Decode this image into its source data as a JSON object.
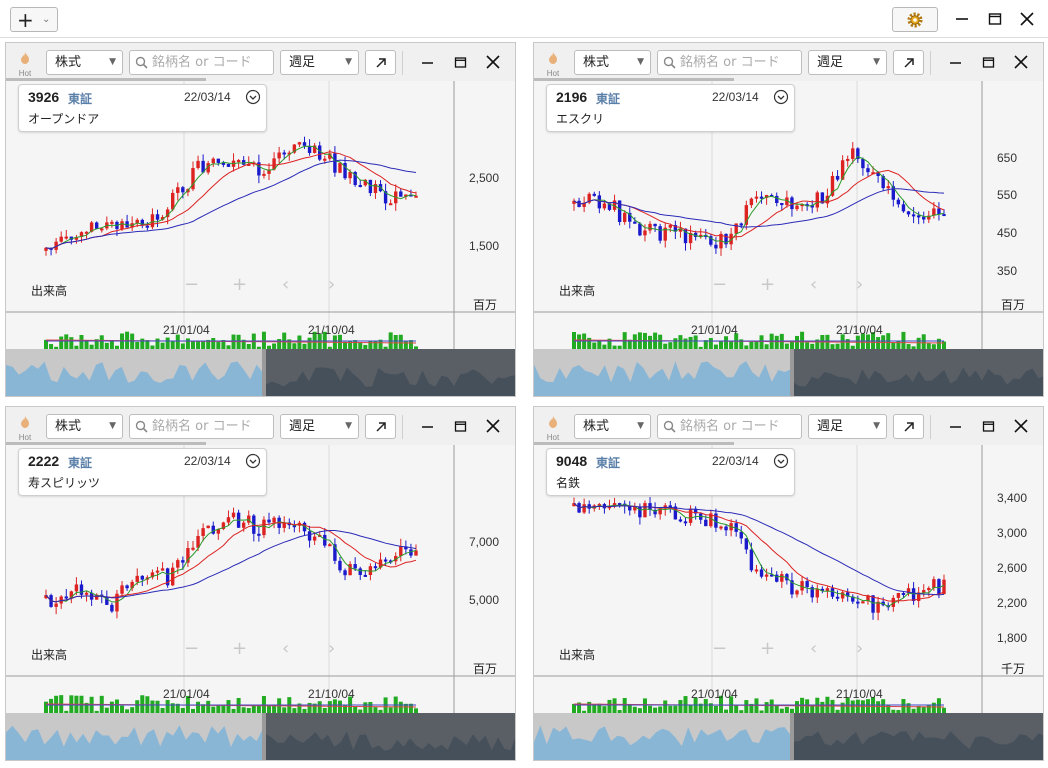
{
  "toolbar": {
    "add_label": "+",
    "add_caret": "⌄",
    "gear_icon": "gear-icon"
  },
  "colors": {
    "up": "#dd2222",
    "down": "#1a1acc",
    "ma_short": "#2a9a2a",
    "ma_mid": "#dd2222",
    "ma_long": "#2b2bb8",
    "volume": "#22aa22",
    "navigator_left": "#8ab6d6",
    "navigator_right": "#46505a"
  },
  "panels": [
    {
      "code": "3926",
      "exchange": "東証",
      "date": "22/03/14",
      "name": "オープンドア",
      "market": "株式",
      "search_placeholder": "銘柄名 or コード",
      "period": "週足",
      "hot": "Hot",
      "price_ticks": [
        "2,500",
        "1,500"
      ],
      "volume_label": "出来高",
      "volume_unit": "百万",
      "date_ticks": [
        "21/01/04",
        "21/10/04"
      ]
    },
    {
      "code": "2196",
      "exchange": "東証",
      "date": "22/03/14",
      "name": "エスクリ",
      "market": "株式",
      "search_placeholder": "銘柄名 or コード",
      "period": "週足",
      "hot": "Hot",
      "price_ticks": [
        "650",
        "550",
        "450",
        "350"
      ],
      "volume_label": "出来高",
      "volume_unit": "百万",
      "date_ticks": [
        "21/01/04",
        "21/10/04"
      ]
    },
    {
      "code": "2222",
      "exchange": "東証",
      "date": "22/03/14",
      "name": "寿スピリッツ",
      "market": "株式",
      "search_placeholder": "銘柄名 or コード",
      "period": "週足",
      "hot": "Hot",
      "price_ticks": [
        "7,000",
        "5,000"
      ],
      "volume_label": "出来高",
      "volume_unit": "百万",
      "date_ticks": [
        "21/01/04",
        "21/10/04"
      ]
    },
    {
      "code": "9048",
      "exchange": "東証",
      "date": "22/03/14",
      "name": "名鉄",
      "market": "株式",
      "search_placeholder": "銘柄名 or コード",
      "period": "週足",
      "hot": "Hot",
      "price_ticks": [
        "3,400",
        "3,000",
        "2,600",
        "2,200",
        "1,800"
      ],
      "volume_label": "出来高",
      "volume_unit": "千万",
      "date_ticks": [
        "21/01/04",
        "21/10/04"
      ]
    }
  ]
}
